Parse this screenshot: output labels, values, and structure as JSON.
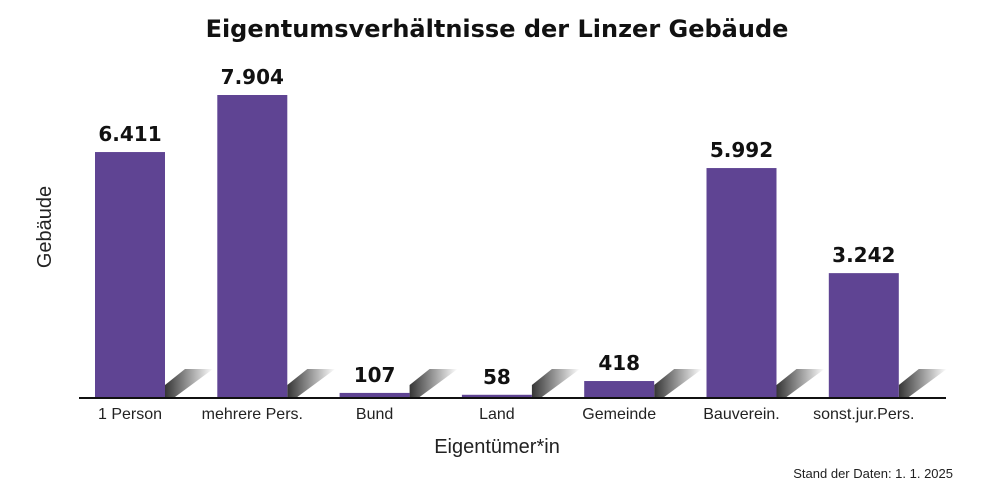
{
  "chart_data": {
    "type": "bar",
    "title": "Eigentumsverhältnisse der Linzer Gebäude",
    "xlabel": "Eigentümer*in",
    "ylabel": "Gebäude",
    "categories": [
      "1 Person",
      "mehrere Pers.",
      "Bund",
      "Land",
      "Gemeinde",
      "Bauverein.",
      "sonst.jur.Pers."
    ],
    "values": [
      6411,
      7904,
      107,
      58,
      418,
      5992,
      3242
    ],
    "value_labels": [
      "6.411",
      "7.904",
      "107",
      "58",
      "418",
      "5.992",
      "3.242"
    ],
    "ylim": [
      0,
      7904
    ],
    "grid": false,
    "bar_color": "#5f4493",
    "shadow_color": "#3a3a3a",
    "footnote": "Stand der Daten: 1. 1. 2025"
  }
}
